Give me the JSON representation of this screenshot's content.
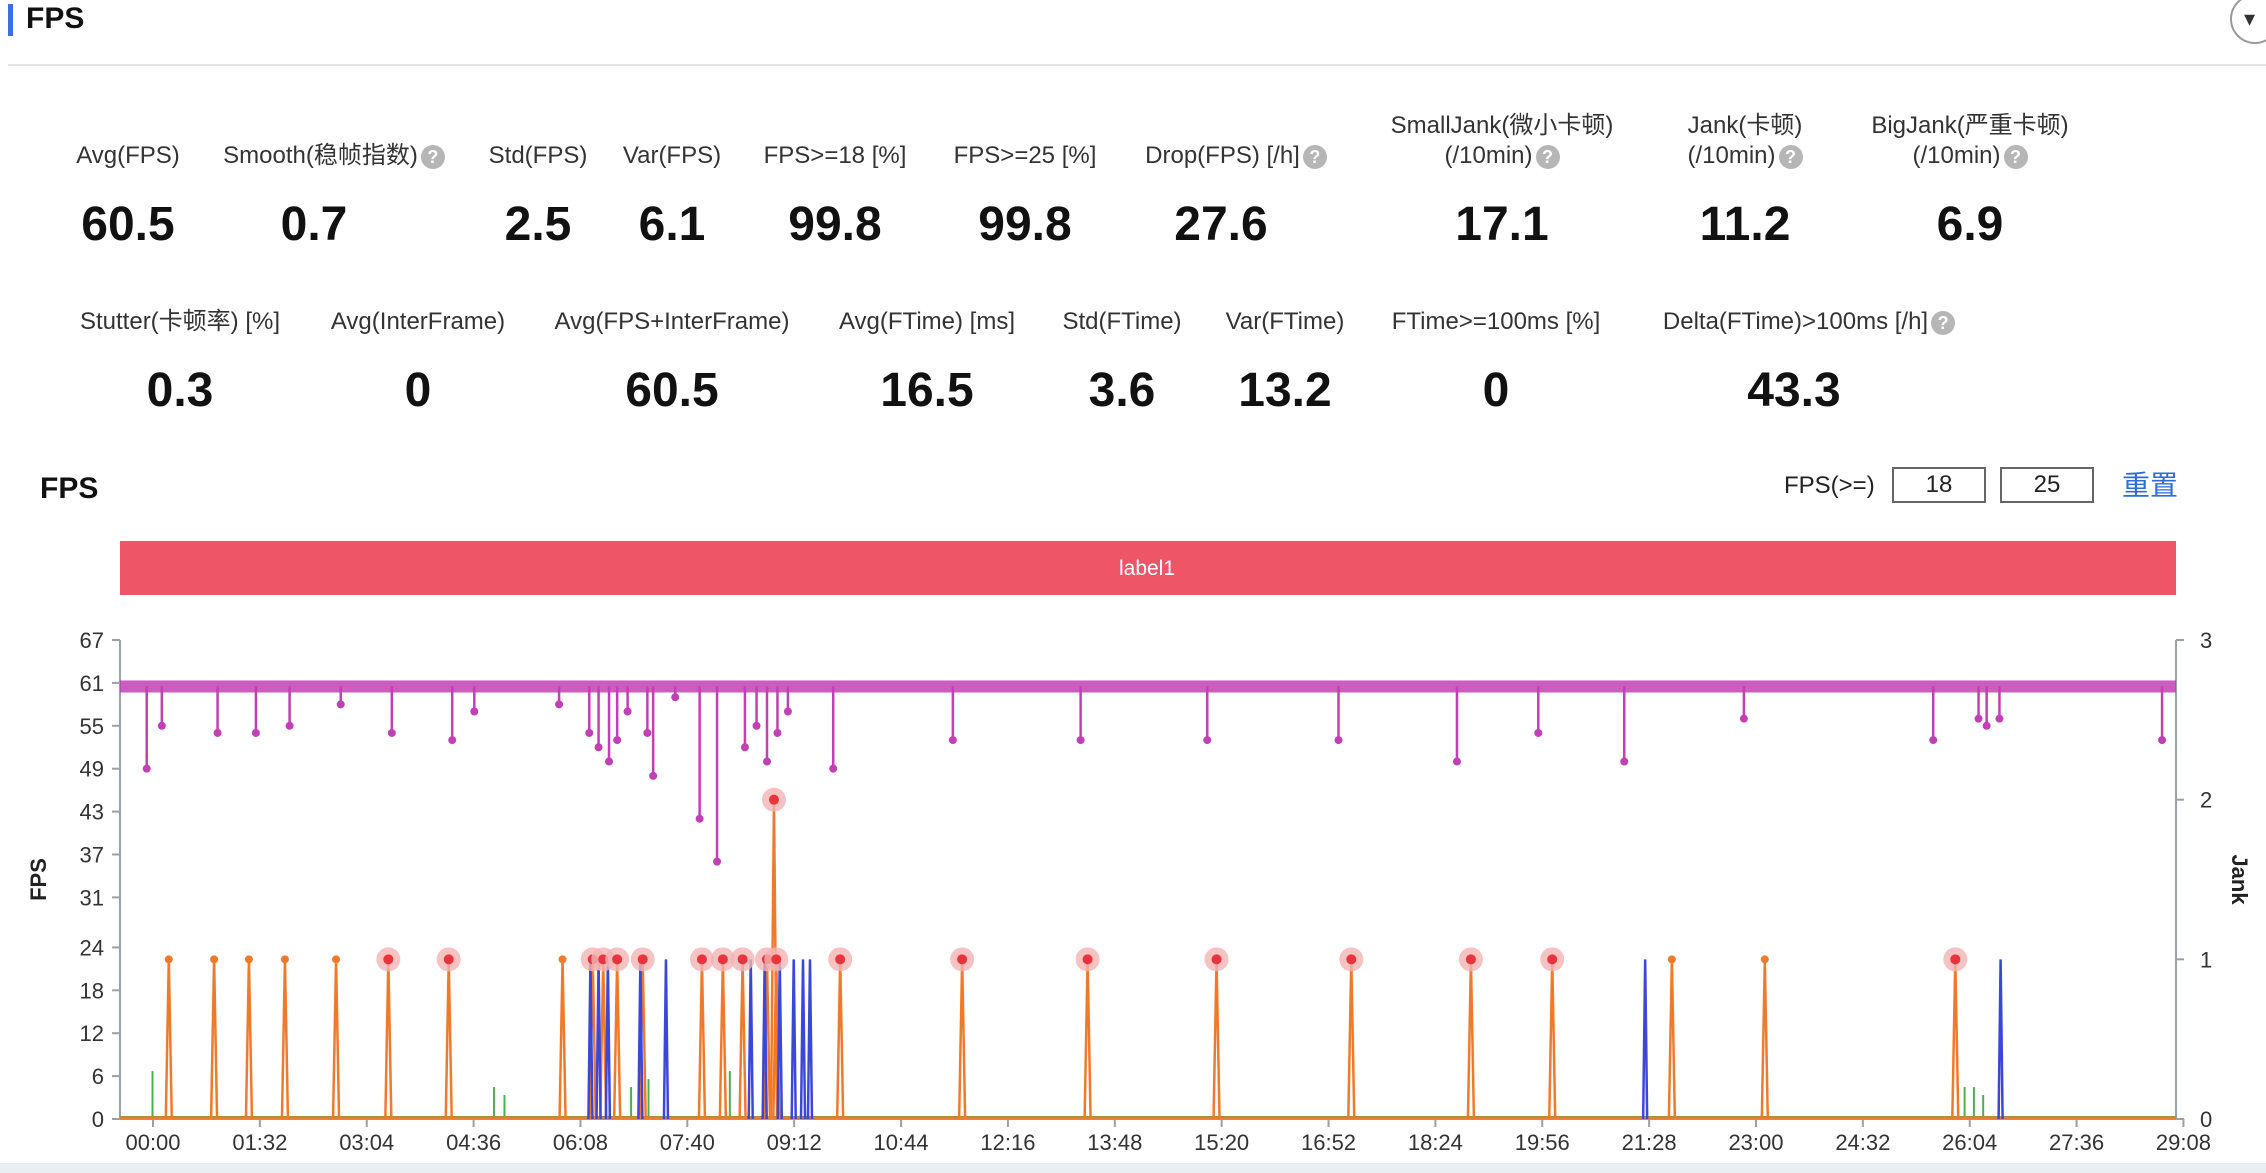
{
  "header": {
    "title": "FPS"
  },
  "metrics_row1": [
    {
      "label": "Avg(FPS)",
      "value": "60.5",
      "help": false
    },
    {
      "label": "Smooth(稳帧指数)",
      "value": "0.7",
      "help": true
    },
    {
      "label": "Std(FPS)",
      "value": "2.5",
      "help": false
    },
    {
      "label": "Var(FPS)",
      "value": "6.1",
      "help": false
    },
    {
      "label": "FPS>=18 [%]",
      "value": "99.8",
      "help": false
    },
    {
      "label": "FPS>=25 [%]",
      "value": "99.8",
      "help": false
    },
    {
      "label": "Drop(FPS) [/h]",
      "value": "27.6",
      "help": true
    },
    {
      "label": "SmallJank(微小卡顿)",
      "label2": "(/10min)",
      "value": "17.1",
      "help": true
    },
    {
      "label": "Jank(卡顿)",
      "label2": "(/10min)",
      "value": "11.2",
      "help": true
    },
    {
      "label": "BigJank(严重卡顿)",
      "label2": "(/10min)",
      "value": "6.9",
      "help": true
    }
  ],
  "metrics_row2": [
    {
      "label": "Stutter(卡顿率) [%]",
      "value": "0.3",
      "help": false
    },
    {
      "label": "Avg(InterFrame)",
      "value": "0",
      "help": false
    },
    {
      "label": "Avg(FPS+InterFrame)",
      "value": "60.5",
      "help": false
    },
    {
      "label": "Avg(FTime) [ms]",
      "value": "16.5",
      "help": false
    },
    {
      "label": "Std(FTime)",
      "value": "3.6",
      "help": false
    },
    {
      "label": "Var(FTime)",
      "value": "13.2",
      "help": false
    },
    {
      "label": "FTime>=100ms [%]",
      "value": "0",
      "help": false
    },
    {
      "label": "Delta(FTime)>100ms [/h]",
      "value": "43.3",
      "help": true
    }
  ],
  "chart_section": {
    "title": "FPS",
    "fps_label": "FPS(>=)",
    "threshold_low": "18",
    "threshold_high": "25",
    "reset_label": "重置"
  },
  "chart_data": {
    "type": "line",
    "title": "",
    "band_label": "label1",
    "ylabel": "FPS",
    "y2label": "Jank",
    "ylim": [
      0,
      67
    ],
    "y2lim": [
      0,
      3
    ],
    "yticks": [
      0,
      6,
      12,
      18,
      24,
      31,
      37,
      43,
      49,
      55,
      61,
      67
    ],
    "y2ticks": [
      0,
      1,
      2,
      3
    ],
    "xticks": [
      "00:00",
      "01:32",
      "03:04",
      "04:36",
      "06:08",
      "07:40",
      "09:12",
      "10:44",
      "12:16",
      "13:48",
      "15:20",
      "16:52",
      "18:24",
      "19:56",
      "21:28",
      "23:00",
      "24:32",
      "26:04",
      "27:36",
      "29:08"
    ],
    "xlim_seconds": [
      0,
      1770
    ],
    "colors": {
      "fps": "#c23fb5",
      "jank": "#f07a2a",
      "bigjank": "#3a47d8",
      "smalljank": "#4caf50",
      "marker": "#e8343c",
      "band": "#ee5566"
    },
    "fps_baseline": 60.5,
    "fps_dips": [
      {
        "t": 23,
        "v": 49
      },
      {
        "t": 36,
        "v": 55
      },
      {
        "t": 84,
        "v": 54
      },
      {
        "t": 117,
        "v": 54
      },
      {
        "t": 146,
        "v": 55
      },
      {
        "t": 190,
        "v": 58
      },
      {
        "t": 234,
        "v": 54
      },
      {
        "t": 286,
        "v": 53
      },
      {
        "t": 305,
        "v": 57
      },
      {
        "t": 378,
        "v": 58
      },
      {
        "t": 404,
        "v": 54
      },
      {
        "t": 412,
        "v": 52
      },
      {
        "t": 421,
        "v": 50
      },
      {
        "t": 428,
        "v": 53
      },
      {
        "t": 437,
        "v": 57
      },
      {
        "t": 454,
        "v": 54
      },
      {
        "t": 459,
        "v": 48
      },
      {
        "t": 478,
        "v": 59
      },
      {
        "t": 499,
        "v": 42
      },
      {
        "t": 514,
        "v": 36
      },
      {
        "t": 538,
        "v": 52
      },
      {
        "t": 548,
        "v": 55
      },
      {
        "t": 557,
        "v": 50
      },
      {
        "t": 566,
        "v": 54
      },
      {
        "t": 575,
        "v": 57
      },
      {
        "t": 614,
        "v": 49
      },
      {
        "t": 717,
        "v": 53
      },
      {
        "t": 827,
        "v": 53
      },
      {
        "t": 936,
        "v": 53
      },
      {
        "t": 1049,
        "v": 53
      },
      {
        "t": 1151,
        "v": 50
      },
      {
        "t": 1221,
        "v": 54
      },
      {
        "t": 1295,
        "v": 50
      },
      {
        "t": 1398,
        "v": 56
      },
      {
        "t": 1561,
        "v": 53
      },
      {
        "t": 1600,
        "v": 56
      },
      {
        "t": 1607,
        "v": 55
      },
      {
        "t": 1618,
        "v": 56
      },
      {
        "t": 1758,
        "v": 53
      }
    ],
    "jank_events": [
      {
        "t": 42,
        "v": 1,
        "marker": false
      },
      {
        "t": 81,
        "v": 1,
        "marker": false
      },
      {
        "t": 111,
        "v": 1,
        "marker": false
      },
      {
        "t": 142,
        "v": 1,
        "marker": false
      },
      {
        "t": 186,
        "v": 1,
        "marker": false
      },
      {
        "t": 231,
        "v": 1,
        "marker": true
      },
      {
        "t": 283,
        "v": 1,
        "marker": true
      },
      {
        "t": 381,
        "v": 1,
        "marker": false
      },
      {
        "t": 407,
        "v": 1,
        "marker": true
      },
      {
        "t": 416,
        "v": 1,
        "marker": true
      },
      {
        "t": 428,
        "v": 1,
        "marker": true
      },
      {
        "t": 450,
        "v": 1,
        "marker": true
      },
      {
        "t": 501,
        "v": 1,
        "marker": true
      },
      {
        "t": 519,
        "v": 1,
        "marker": true
      },
      {
        "t": 536,
        "v": 1,
        "marker": true
      },
      {
        "t": 557,
        "v": 1,
        "marker": true
      },
      {
        "t": 565,
        "v": 1,
        "marker": true
      },
      {
        "t": 563,
        "v": 2,
        "marker": true
      },
      {
        "t": 620,
        "v": 1,
        "marker": true
      },
      {
        "t": 725,
        "v": 1,
        "marker": true
      },
      {
        "t": 833,
        "v": 1,
        "marker": true
      },
      {
        "t": 944,
        "v": 1,
        "marker": true
      },
      {
        "t": 1060,
        "v": 1,
        "marker": true
      },
      {
        "t": 1163,
        "v": 1,
        "marker": true
      },
      {
        "t": 1233,
        "v": 1,
        "marker": true
      },
      {
        "t": 1336,
        "v": 1,
        "marker": false
      },
      {
        "t": 1416,
        "v": 1,
        "marker": false
      },
      {
        "t": 1580,
        "v": 1,
        "marker": true
      }
    ],
    "bigjank_events": [
      {
        "t": 405,
        "v": 1
      },
      {
        "t": 412,
        "v": 1
      },
      {
        "t": 420,
        "v": 1
      },
      {
        "t": 448,
        "v": 1
      },
      {
        "t": 470,
        "v": 1
      },
      {
        "t": 543,
        "v": 1
      },
      {
        "t": 555,
        "v": 1
      },
      {
        "t": 568,
        "v": 1
      },
      {
        "t": 580,
        "v": 1
      },
      {
        "t": 588,
        "v": 1
      },
      {
        "t": 594,
        "v": 1
      },
      {
        "t": 1313,
        "v": 1
      },
      {
        "t": 1619,
        "v": 1
      }
    ],
    "smalljank_events": [
      {
        "t": 28,
        "v": 0.3
      },
      {
        "t": 322,
        "v": 0.2
      },
      {
        "t": 331,
        "v": 0.15
      },
      {
        "t": 440,
        "v": 0.2
      },
      {
        "t": 455,
        "v": 0.25
      },
      {
        "t": 525,
        "v": 0.3
      },
      {
        "t": 1588,
        "v": 0.2
      },
      {
        "t": 1596,
        "v": 0.2
      },
      {
        "t": 1604,
        "v": 0.15
      }
    ]
  }
}
